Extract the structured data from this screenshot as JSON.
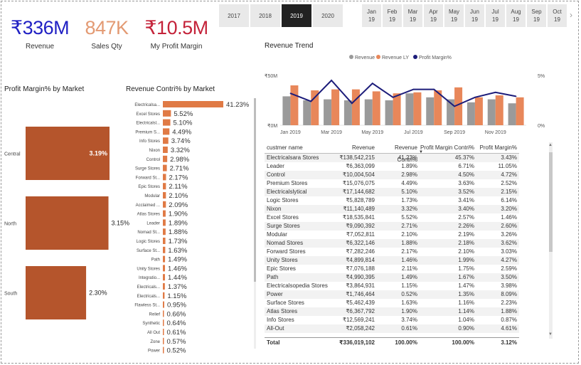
{
  "kpis": {
    "revenue": {
      "value": "₹336M",
      "label": "Revenue",
      "color": "#2121c4"
    },
    "sales_qty": {
      "value": "847K",
      "label": "Sales Qty",
      "color": "#e39a73"
    },
    "profit_margin": {
      "value": "₹10.5M",
      "label": "My Profit Margin",
      "color": "#c4233a"
    }
  },
  "year_slicer": {
    "years": [
      "2017",
      "2018",
      "2019",
      "2020"
    ],
    "selected": "2019"
  },
  "month_slicer": {
    "months": [
      {
        "m": "Jan",
        "y": "19"
      },
      {
        "m": "Feb",
        "y": "19"
      },
      {
        "m": "Mar",
        "y": "19"
      },
      {
        "m": "Apr",
        "y": "19"
      },
      {
        "m": "May",
        "y": "19"
      },
      {
        "m": "Jun",
        "y": "19"
      },
      {
        "m": "Jul",
        "y": "19"
      },
      {
        "m": "Aug",
        "y": "19"
      },
      {
        "m": "Sep",
        "y": "19"
      },
      {
        "m": "Oct",
        "y": "19"
      }
    ],
    "next_icon": "chevron-right-icon"
  },
  "colors": {
    "accent_orange": "#e8875a",
    "revenue_gray": "#9a9a9a",
    "margin_navy": "#1c1c7a",
    "market_bar": "#b5552c",
    "contri_bar": "#e07a45"
  },
  "chart_data": [
    {
      "type": "bar",
      "title": "Profit Margin% by Market",
      "categories": [
        "Central",
        "North",
        "South"
      ],
      "values": [
        3.19,
        3.15,
        2.3
      ],
      "labels": [
        "3.19%",
        "3.15%",
        "2.30%"
      ]
    },
    {
      "type": "bar",
      "title": "Revenue Contri% by Market",
      "categories": [
        "Electricalsa...",
        "Excel Stores",
        "Electricalsl...",
        "Premium S...",
        "Info Stores",
        "Nixon",
        "Control",
        "Surge Stores",
        "Forward St...",
        "Epic Stores",
        "Modular",
        "Acclaimed ...",
        "Atlas Stores",
        "Leader",
        "Nomad St...",
        "Logic Stores",
        "Surface St...",
        "Path",
        "Unity Stores",
        "Integratio...",
        "Electricals...",
        "Electricals...",
        "Flawless St...",
        "Relief",
        "Synthetic",
        "All Out",
        "Zone",
        "Power"
      ],
      "values": [
        41.23,
        5.52,
        5.1,
        4.49,
        3.74,
        3.32,
        2.98,
        2.71,
        2.17,
        2.11,
        2.1,
        2.09,
        1.9,
        1.89,
        1.88,
        1.73,
        1.63,
        1.49,
        1.46,
        1.44,
        1.37,
        1.15,
        0.95,
        0.66,
        0.64,
        0.61,
        0.57,
        0.52
      ],
      "labels": [
        "41.23%",
        "5.52%",
        "5.10%",
        "4.49%",
        "3.74%",
        "3.32%",
        "2.98%",
        "2.71%",
        "2.17%",
        "2.11%",
        "2.10%",
        "2.09%",
        "1.90%",
        "1.89%",
        "1.88%",
        "1.73%",
        "1.63%",
        "1.49%",
        "1.46%",
        "1.44%",
        "1.37%",
        "1.15%",
        "0.95%",
        "0.66%",
        "0.64%",
        "0.61%",
        "0.57%",
        "0.52%"
      ]
    },
    {
      "type": "bar",
      "title": "Revenue Trend",
      "legend": [
        "Revenue",
        "Revenue LY",
        "Profit Margin%"
      ],
      "y_left_ticks": [
        "₹50M",
        "₹0M"
      ],
      "y_right_ticks": [
        "5%",
        "0%"
      ],
      "x_tick_labels": [
        "Jan 2019",
        "Mar 2019",
        "May 2019",
        "Jul 2019",
        "Sep 2019",
        "Nov 2019"
      ],
      "ylim_revenue_m": [
        0,
        50
      ],
      "ylim_margin_pct": [
        0,
        5
      ],
      "categories": [
        "Jan 2019",
        "Feb 2019",
        "Mar 2019",
        "Apr 2019",
        "May 2019",
        "Jun 2019",
        "Jul 2019",
        "Aug 2019",
        "Sep 2019",
        "Oct 2019",
        "Nov 2019",
        "Dec 2019"
      ],
      "series": [
        {
          "name": "Revenue",
          "values": [
            29,
            25,
            26,
            25,
            26,
            25,
            32,
            28,
            26,
            23,
            26,
            22
          ]
        },
        {
          "name": "Revenue LY",
          "values": [
            40,
            35,
            36,
            36,
            34,
            32,
            33,
            35,
            38,
            28,
            30,
            28
          ]
        },
        {
          "name": "Profit Margin%",
          "values": [
            3.2,
            2.4,
            4.5,
            2.2,
            4.2,
            2.8,
            3.6,
            3.6,
            1.9,
            2.8,
            3.3,
            2.9
          ]
        }
      ]
    }
  ],
  "table": {
    "headers": [
      "custmer name",
      "Revenue",
      "Revenue Contri%",
      "Profit Margin Contri%",
      "Profit Margin%"
    ],
    "sort_icon": "sort-descending-icon",
    "rows": [
      [
        "Electricalsara Stores",
        "₹138,542,215",
        "41.23%",
        "45.37%",
        "3.43%"
      ],
      [
        "Leader",
        "₹6,363,099",
        "1.89%",
        "6.71%",
        "11.05%"
      ],
      [
        "Control",
        "₹10,004,504",
        "2.98%",
        "4.50%",
        "4.72%"
      ],
      [
        "Premium Stores",
        "₹15,076,075",
        "4.49%",
        "3.63%",
        "2.52%"
      ],
      [
        "Electricalslytical",
        "₹17,144,682",
        "5.10%",
        "3.52%",
        "2.15%"
      ],
      [
        "Logic Stores",
        "₹5,828,789",
        "1.73%",
        "3.41%",
        "6.14%"
      ],
      [
        "Nixon",
        "₹11,140,489",
        "3.32%",
        "3.40%",
        "3.20%"
      ],
      [
        "Excel Stores",
        "₹18,535,841",
        "5.52%",
        "2.57%",
        "1.46%"
      ],
      [
        "Surge Stores",
        "₹9,090,392",
        "2.71%",
        "2.26%",
        "2.60%"
      ],
      [
        "Modular",
        "₹7,052,811",
        "2.10%",
        "2.19%",
        "3.26%"
      ],
      [
        "Nomad Stores",
        "₹6,322,146",
        "1.88%",
        "2.18%",
        "3.62%"
      ],
      [
        "Forward Stores",
        "₹7,282,246",
        "2.17%",
        "2.10%",
        "3.03%"
      ],
      [
        "Unity Stores",
        "₹4,899,814",
        "1.46%",
        "1.99%",
        "4.27%"
      ],
      [
        "Epic Stores",
        "₹7,076,188",
        "2.11%",
        "1.75%",
        "2.59%"
      ],
      [
        "Path",
        "₹4,990,395",
        "1.49%",
        "1.67%",
        "3.50%"
      ],
      [
        "Electricalsopedia Stores",
        "₹3,864,931",
        "1.15%",
        "1.47%",
        "3.98%"
      ],
      [
        "Power",
        "₹1,746,464",
        "0.52%",
        "1.35%",
        "8.09%"
      ],
      [
        "Surface Stores",
        "₹5,462,439",
        "1.63%",
        "1.16%",
        "2.23%"
      ],
      [
        "Atlas Stores",
        "₹6,367,792",
        "1.90%",
        "1.14%",
        "1.88%"
      ],
      [
        "Info Stores",
        "₹12,569,241",
        "3.74%",
        "1.04%",
        "0.87%"
      ],
      [
        "All-Out",
        "₹2,058,242",
        "0.61%",
        "0.90%",
        "4.61%"
      ]
    ],
    "total": [
      "Total",
      "₹336,019,102",
      "100.00%",
      "100.00%",
      "3.12%"
    ]
  }
}
